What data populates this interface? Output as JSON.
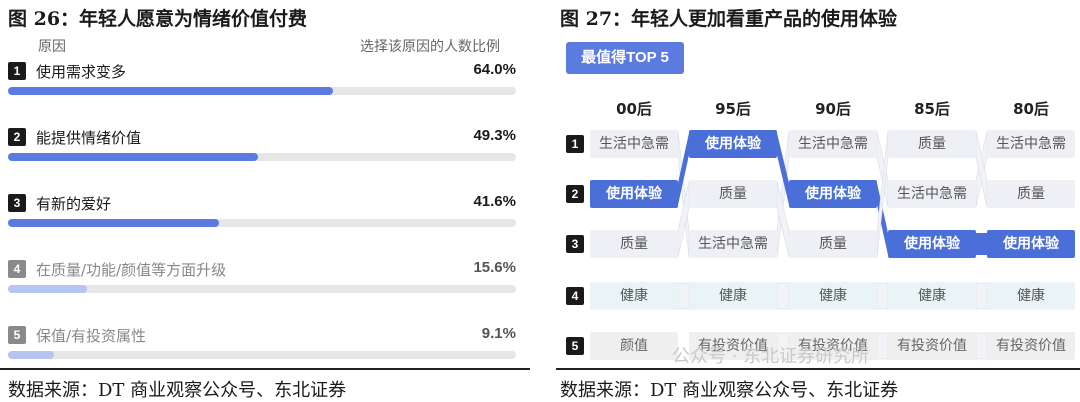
{
  "left": {
    "title": "图 26：年轻人愿意为情绪价值付费",
    "col_reason": "原因",
    "col_share": "选择该原因的人数比例",
    "source": "数据来源：DT 商业观察公众号、东北证券"
  },
  "right": {
    "title": "图 27：年轻人更加看重产品的使用体验",
    "badge": "最值得TOP 5",
    "source": "数据来源：DT 商业观察公众号、东北证券",
    "watermark": "公众号 · 东北证券研究所",
    "rank_numbers": [
      "1",
      "2",
      "3",
      "4",
      "5"
    ]
  },
  "chart_data": [
    {
      "type": "bar",
      "orientation": "horizontal",
      "title": "图 26：年轻人愿意为情绪价值付费",
      "xlim": [
        0,
        100
      ],
      "colors": {
        "top3": "#5b7be0",
        "rest": "#b3c5f0",
        "num_top3": "#1a1a1a",
        "num_rest": "#8a8a8a"
      },
      "categories": [
        "使用需求变多",
        "能提供情绪价值",
        "有新的爱好",
        "在质量/功能/颜值等方面升级",
        "保值/有投资属性"
      ],
      "numbers": [
        "1",
        "2",
        "3",
        "4",
        "5"
      ],
      "values": [
        64.0,
        49.3,
        41.6,
        15.6,
        9.1
      ],
      "labels": [
        "64.0%",
        "49.3%",
        "41.6%",
        "15.6%",
        "9.1%"
      ]
    },
    {
      "type": "table",
      "title": "图 27：年轻人更加看重产品的使用体验",
      "columns": [
        "00后",
        "95后",
        "90后",
        "85后",
        "80后"
      ],
      "ranks": [
        1,
        2,
        3,
        4,
        5
      ],
      "rows": [
        [
          "生活中急需",
          "使用体验",
          "生活中急需",
          "质量",
          "生活中急需"
        ],
        [
          "使用体验",
          "质量",
          "使用体验",
          "生活中急需",
          "质量"
        ],
        [
          "质量",
          "生活中急需",
          "质量",
          "使用体验",
          "使用体验"
        ],
        [
          "健康",
          "健康",
          "健康",
          "健康",
          "健康"
        ],
        [
          "颜值",
          "有投资价值",
          "有投资价值",
          "有投资价值",
          "有投资价值"
        ]
      ],
      "highlight": "使用体验",
      "colors": {
        "highlight": "#4a6fd8",
        "plain": "#eef0f6",
        "health": "#e8f4f5",
        "last": "#efefef"
      }
    }
  ]
}
